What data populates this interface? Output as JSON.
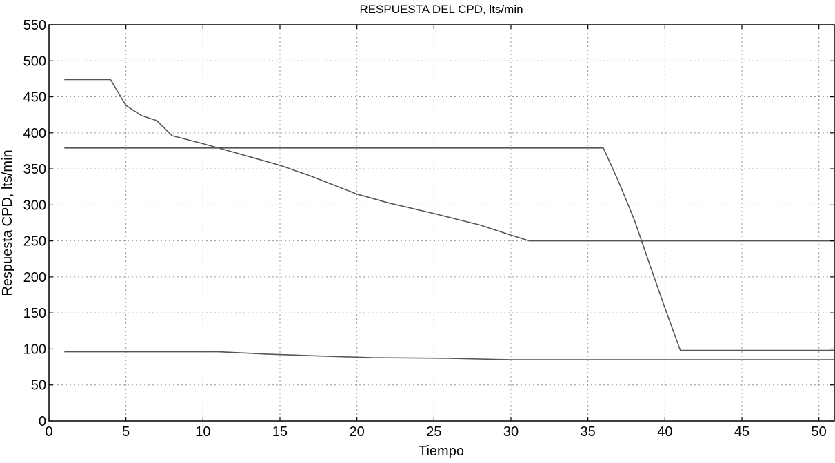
{
  "chart_data": {
    "type": "line",
    "title": "RESPUESTA DEL CPD, lts/min",
    "xlabel": "Tiempo",
    "ylabel": "Respuesta CPD, lts/min",
    "xlim": [
      0,
      51
    ],
    "ylim": [
      0,
      550
    ],
    "xticks": [
      0,
      5,
      10,
      15,
      20,
      25,
      30,
      35,
      40,
      45,
      50
    ],
    "yticks": [
      0,
      50,
      100,
      150,
      200,
      250,
      300,
      350,
      400,
      450,
      500,
      550
    ],
    "grid": true,
    "line_color": "#555555",
    "series": [
      {
        "x": [
          1,
          4,
          5,
          6,
          7,
          8,
          10,
          12,
          15,
          17,
          20,
          22,
          25,
          28,
          30,
          31.2,
          51
        ],
        "y": [
          474,
          474,
          438,
          424,
          417,
          396,
          385,
          373,
          355,
          340,
          315,
          303,
          288,
          272,
          258,
          250,
          250
        ]
      },
      {
        "x": [
          1,
          36,
          37,
          38,
          39,
          40,
          41,
          51
        ],
        "y": [
          379,
          379,
          332,
          280,
          218,
          157,
          98,
          98
        ]
      },
      {
        "x": [
          1,
          11,
          14,
          18,
          21,
          26,
          30,
          51
        ],
        "y": [
          96,
          96,
          93,
          90,
          88,
          87,
          85,
          85
        ]
      }
    ]
  }
}
